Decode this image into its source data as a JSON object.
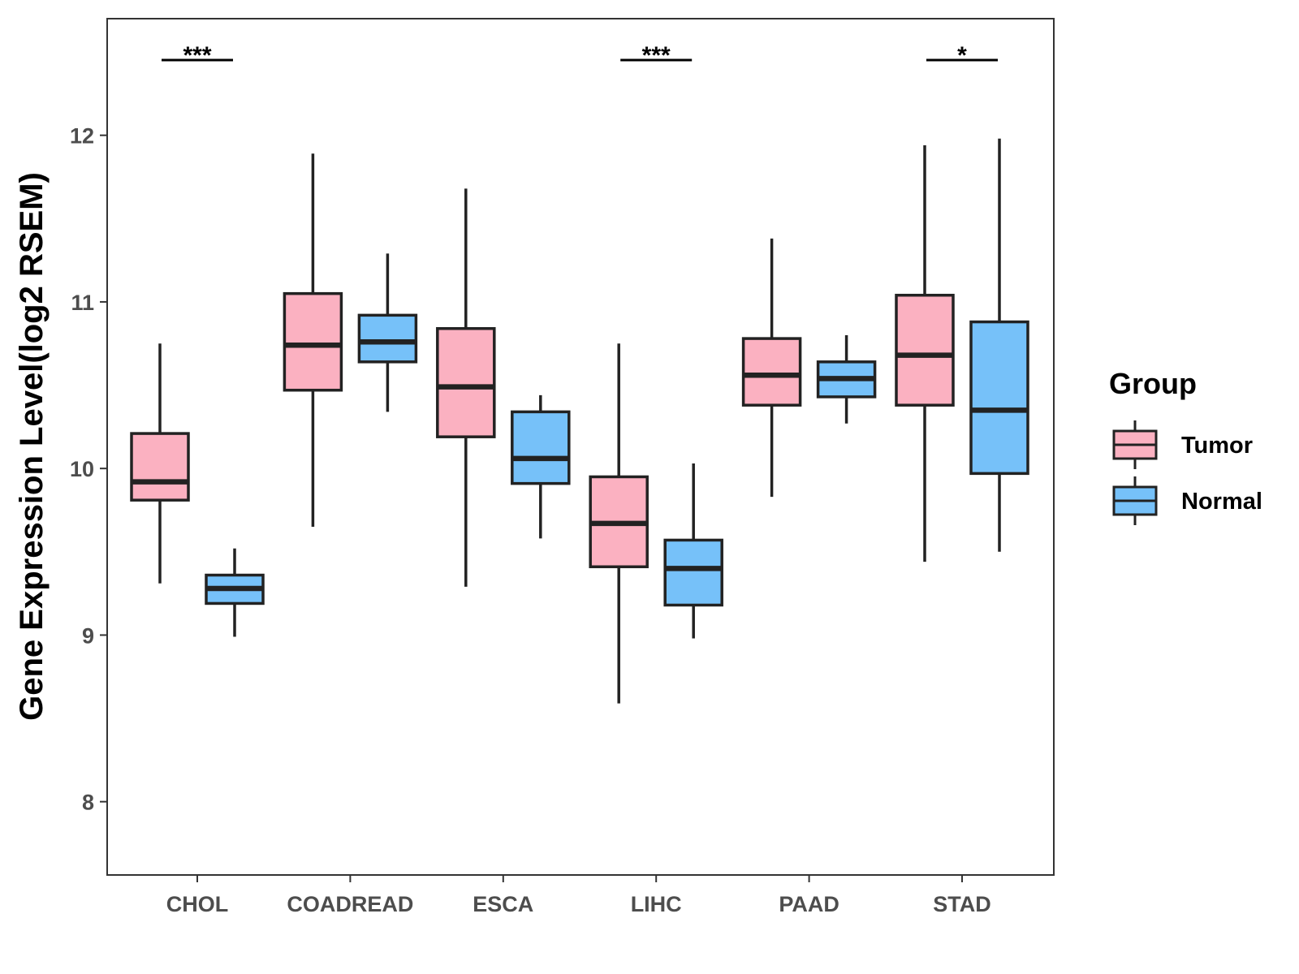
{
  "chart_data": {
    "type": "boxplot",
    "title": "",
    "xlabel": "",
    "ylabel": "Gene Expression Level(log2 RSEM)",
    "ylim": [
      7.56,
      12.7
    ],
    "yticks": [
      8,
      9,
      10,
      11,
      12
    ],
    "grid": false,
    "legend": {
      "title": "Group",
      "position": "right"
    },
    "categories": [
      "CHOL",
      "COADREAD",
      "ESCA",
      "LIHC",
      "PAAD",
      "STAD"
    ],
    "series": [
      {
        "name": "Tumor",
        "color": "#FBB1C1",
        "boxes": [
          {
            "min": 9.31,
            "q1": 9.81,
            "median": 9.92,
            "q3": 10.21,
            "max": 10.75
          },
          {
            "min": 9.65,
            "q1": 10.47,
            "median": 10.74,
            "q3": 11.05,
            "max": 11.89
          },
          {
            "min": 9.29,
            "q1": 10.19,
            "median": 10.49,
            "q3": 10.84,
            "max": 11.68
          },
          {
            "min": 8.59,
            "q1": 9.41,
            "median": 9.67,
            "q3": 9.95,
            "max": 10.75
          },
          {
            "min": 9.83,
            "q1": 10.38,
            "median": 10.56,
            "q3": 10.78,
            "max": 11.38
          },
          {
            "min": 9.44,
            "q1": 10.38,
            "median": 10.68,
            "q3": 11.04,
            "max": 11.94
          }
        ]
      },
      {
        "name": "Normal",
        "color": "#76C1F9",
        "boxes": [
          {
            "min": 8.99,
            "q1": 9.19,
            "median": 9.28,
            "q3": 9.36,
            "max": 9.52
          },
          {
            "min": 10.34,
            "q1": 10.64,
            "median": 10.76,
            "q3": 10.92,
            "max": 11.29
          },
          {
            "min": 9.58,
            "q1": 9.91,
            "median": 10.06,
            "q3": 10.34,
            "max": 10.44
          },
          {
            "min": 8.98,
            "q1": 9.18,
            "median": 9.4,
            "q3": 9.57,
            "max": 10.03
          },
          {
            "min": 10.27,
            "q1": 10.43,
            "median": 10.54,
            "q3": 10.64,
            "max": 10.8
          },
          {
            "min": 9.5,
            "q1": 9.97,
            "median": 10.35,
            "q3": 10.88,
            "max": 11.98
          }
        ]
      }
    ],
    "significance": [
      {
        "category": "CHOL",
        "label": "***"
      },
      {
        "category": "LIHC",
        "label": "***"
      },
      {
        "category": "STAD",
        "label": "*"
      }
    ]
  }
}
